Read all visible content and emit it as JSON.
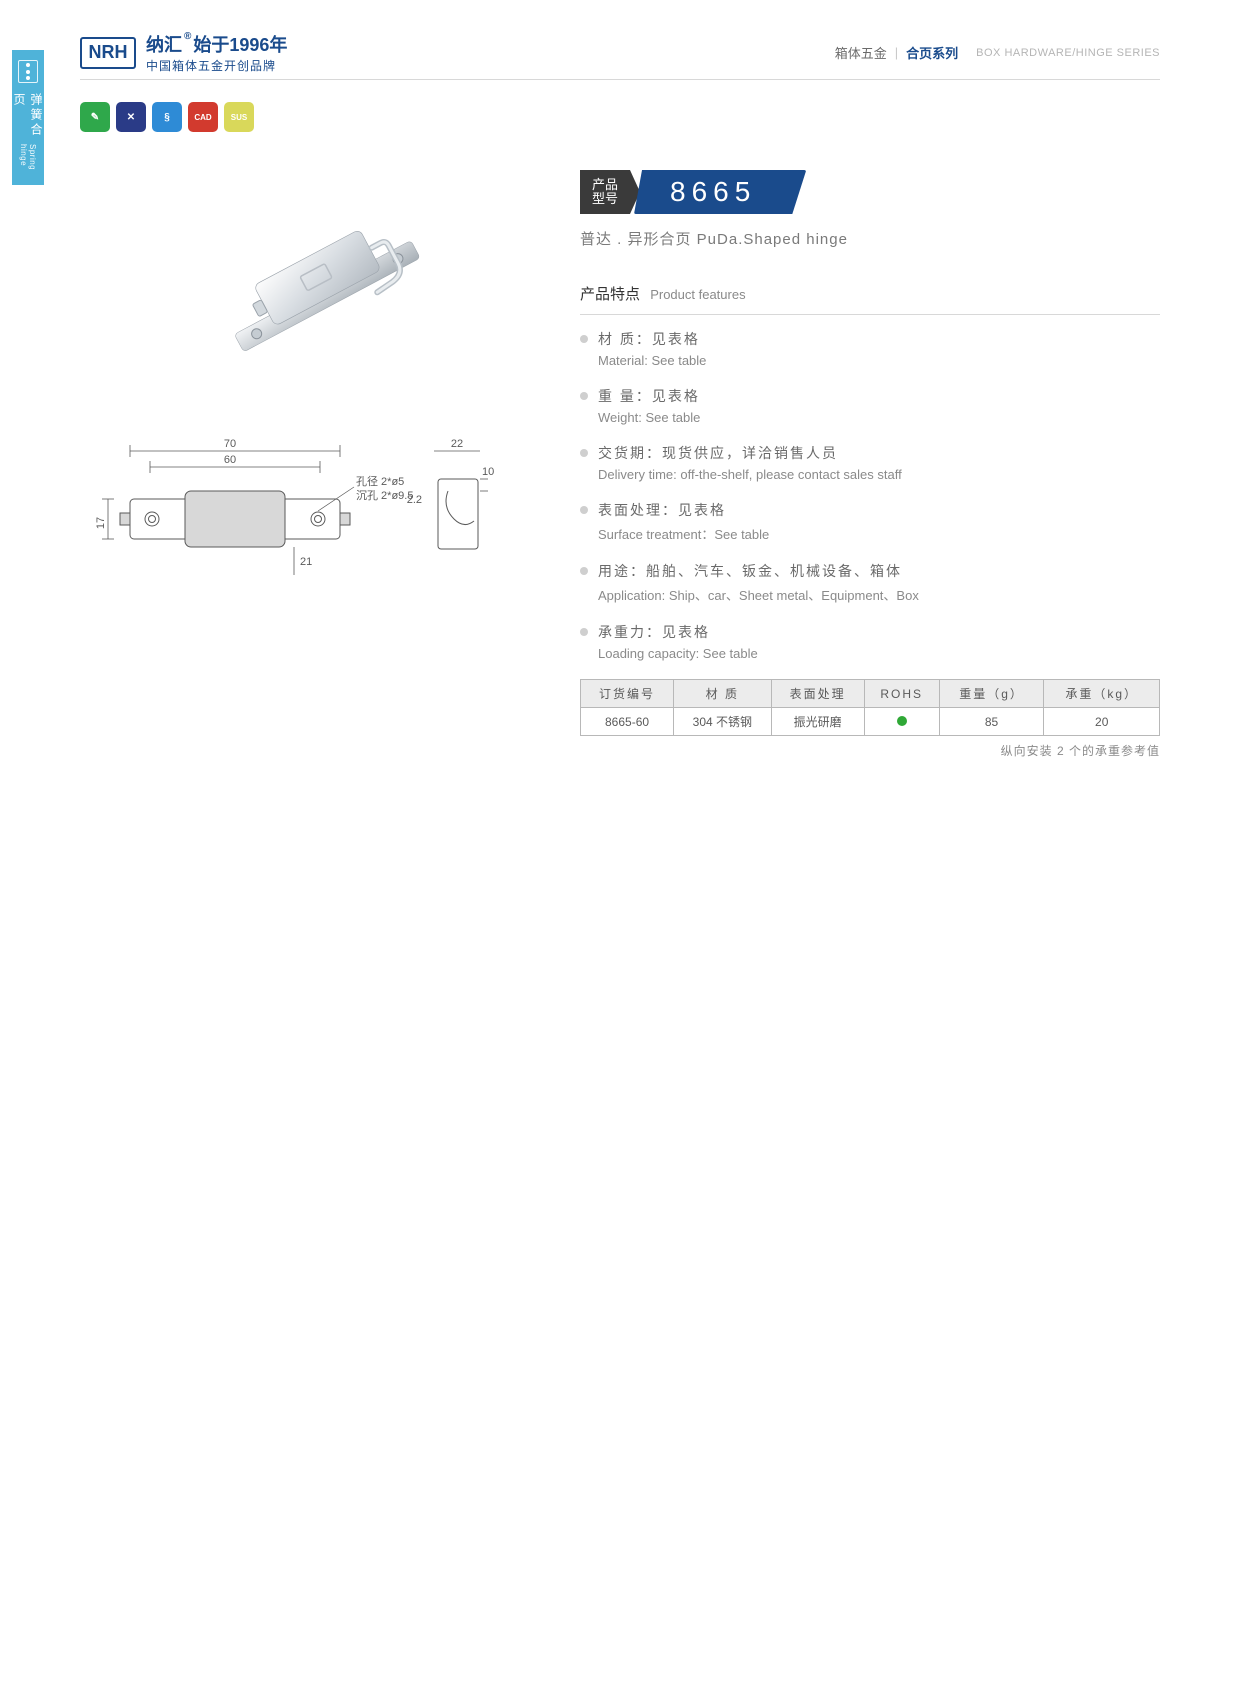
{
  "side_tab": {
    "cn": "弹簧合页",
    "en": "Spring hinge"
  },
  "header": {
    "logo_mark": "NRH",
    "brand_cn": "纳汇",
    "since": "始于1996年",
    "tagline": "中国箱体五金开创品牌",
    "right_cn1": "箱体五金",
    "right_cn2": "合页系列",
    "right_en": "BOX HARDWARE/HINGE SERIES"
  },
  "badges": [
    {
      "bg": "#2fa84b",
      "glyph": "✎"
    },
    {
      "bg": "#2a3b87",
      "glyph": "✕"
    },
    {
      "bg": "#2e8bd6",
      "glyph": "§"
    },
    {
      "bg": "#d23a2e",
      "glyph": "CAD"
    },
    {
      "bg": "#d9d85a",
      "glyph": "SUS"
    }
  ],
  "model": {
    "label_l1": "产品",
    "label_l2": "型号",
    "number": "8665"
  },
  "subtitle": "普达 . 异形合页   PuDa.Shaped hinge",
  "features_header_cn": "产品特点",
  "features_header_en": "Product features",
  "features": [
    {
      "cn": "材   质：见表格",
      "en": "Material: See table"
    },
    {
      "cn": "重   量：见表格",
      "en": "Weight: See table"
    },
    {
      "cn": "交货期：现货供应，详洽销售人员",
      "en": "Delivery time: off-the-shelf, please contact sales staff"
    },
    {
      "cn": "表面处理：见表格",
      "en": "Surface treatment：See table"
    },
    {
      "cn": "用途：船舶、汽车、钣金、机械设备、箱体",
      "en": "Application: Ship、car、Sheet metal、Equipment、Box"
    },
    {
      "cn": "承重力：见表格",
      "en": "Loading capacity: See table"
    }
  ],
  "spec_table": {
    "headers": [
      "订货编号",
      "材   质",
      "表面处理",
      "ROHS",
      "重量（g）",
      "承重（kg）"
    ],
    "rows": [
      {
        "code": "8665-60",
        "material": "304 不锈钢",
        "surface": "振光研磨",
        "rohs": true,
        "weight": "85",
        "load": "20"
      }
    ],
    "note": "纵向安装 2 个的承重参考值"
  },
  "drawing": {
    "dim_70": "70",
    "dim_60": "60",
    "dim_17": "17",
    "dim_21": "21",
    "dim_22": "22",
    "dim_10": "10",
    "dim_2_2": "2.2",
    "hole_label_1": "孔径 2*ø5",
    "hole_label_2": "沉孔 2*ø9.5"
  }
}
